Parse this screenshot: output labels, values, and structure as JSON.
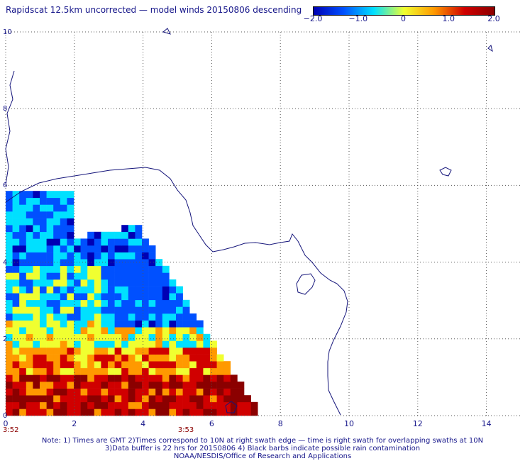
{
  "title": "Rapidscat 12.5km uncorrected — model winds 20150806 descending",
  "colorbar": {
    "ticks": [
      "−2.0",
      "−1.0",
      "0",
      "1.0",
      "2.0"
    ],
    "tick_values": [
      -2.0,
      -1.0,
      0,
      1.0,
      2.0
    ],
    "range": [
      -2.0,
      2.0
    ],
    "colors": [
      "#0000b4",
      "#0050ff",
      "#00e0ff",
      "#f0ff30",
      "#ff9900",
      "#d00000",
      "#8b0000"
    ]
  },
  "axes": {
    "x_ticks": [
      "0",
      "2",
      "4",
      "6",
      "8",
      "10",
      "12",
      "14"
    ],
    "y_ticks": [
      "0",
      "2",
      "4",
      "6",
      "8",
      "10"
    ],
    "x_range": [
      0,
      15
    ],
    "y_range": [
      0,
      10
    ],
    "grid": "dotted"
  },
  "times": [
    "3:52",
    "3:53"
  ],
  "time_positions": [
    0,
    5.1
  ],
  "footer": {
    "line1": "Note: 1) Times are GMT 2)Times correspond to 10N at right swath edge — time is right swath for overlapping swaths at 10N",
    "line2": "3)Data buffer is 22 hrs for 20150806 4) Black barbs indicate possible rain contamination",
    "line3": "NOAA/NESDIS/Office of Research and Applications"
  }
}
